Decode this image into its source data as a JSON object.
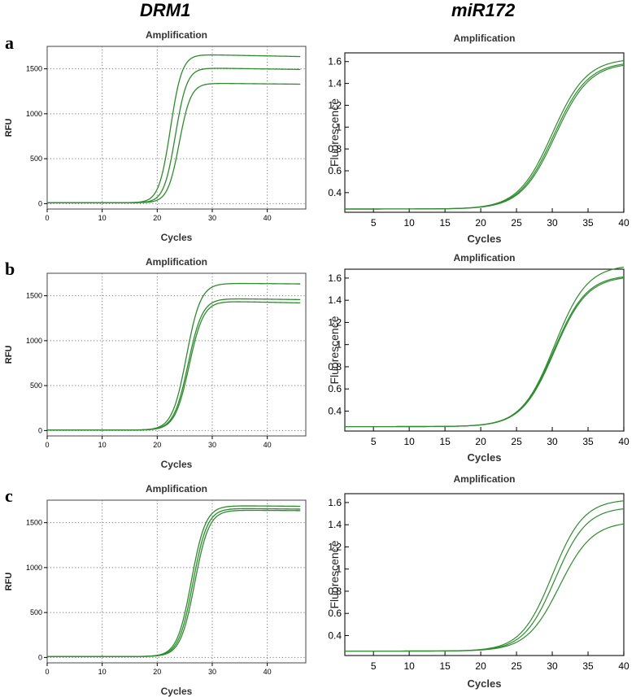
{
  "column_titles": [
    "DRM1",
    "miR172"
  ],
  "row_labels": [
    "a",
    "b",
    "c"
  ],
  "colors": {
    "curve": "#2e8b2e",
    "grid": "#7a7a7a",
    "axis": "#000000"
  },
  "chart_data": [
    {
      "id": "a-left",
      "type": "line",
      "title": "Amplification",
      "xlabel": "Cycles",
      "ylabel": "RFU",
      "xlim": [
        0,
        47
      ],
      "ylim": [
        -60,
        1750
      ],
      "xticks": [
        0,
        10,
        20,
        30,
        40
      ],
      "xtick_labels": [
        "0",
        "10",
        "20",
        "30",
        "40"
      ],
      "yticks": [
        0,
        500,
        1000,
        1500
      ],
      "ytick_labels": [
        "0",
        "500",
        "1000",
        "1500"
      ],
      "grid": true,
      "curve_params": [
        {
          "base": 10,
          "plateau": 1660,
          "mid": 22.4,
          "slope": 1.05,
          "drift": -1.2
        },
        {
          "base": 10,
          "plateau": 1510,
          "mid": 23.3,
          "slope": 1.05,
          "drift": -0.9
        },
        {
          "base": 10,
          "plateau": 1340,
          "mid": 24.0,
          "slope": 1.05,
          "drift": -0.6
        }
      ]
    },
    {
      "id": "a-right",
      "type": "line",
      "title": "Amplification",
      "xlabel": "Cycles",
      "ylabel": "Fluorescence",
      "xlim": [
        1,
        40
      ],
      "ylim": [
        0.22,
        1.68
      ],
      "xticks": [
        5,
        10,
        15,
        20,
        25,
        30,
        35,
        40
      ],
      "xtick_labels": [
        "5",
        "10",
        "15",
        "20",
        "25",
        "30",
        "35",
        "40"
      ],
      "yticks": [
        0.4,
        0.6,
        0.8,
        1.0,
        1.2,
        1.4,
        1.6
      ],
      "ytick_labels": [
        "0.4",
        "0.6",
        "0.8",
        "1",
        "1.2",
        "1.4",
        "1.6"
      ],
      "grid": false,
      "curve_params": [
        {
          "base": 0.25,
          "plateau": 1.63,
          "mid": 30.0,
          "slope": 2.4,
          "drift": 0
        },
        {
          "base": 0.25,
          "plateau": 1.6,
          "mid": 30.2,
          "slope": 2.4,
          "drift": 0
        },
        {
          "base": 0.25,
          "plateau": 1.59,
          "mid": 30.4,
          "slope": 2.4,
          "drift": 0
        }
      ]
    },
    {
      "id": "b-left",
      "type": "line",
      "title": "Amplification",
      "xlabel": "Cycles",
      "ylabel": "RFU",
      "xlim": [
        0,
        47
      ],
      "ylim": [
        -60,
        1750
      ],
      "xticks": [
        0,
        10,
        20,
        30,
        40
      ],
      "xtick_labels": [
        "0",
        "10",
        "20",
        "30",
        "40"
      ],
      "yticks": [
        0,
        500,
        1000,
        1500
      ],
      "ytick_labels": [
        "0",
        "500",
        "1000",
        "1500"
      ],
      "grid": true,
      "curve_params": [
        {
          "base": 5,
          "plateau": 1640,
          "mid": 25.3,
          "slope": 1.3,
          "drift": -0.5
        },
        {
          "base": 5,
          "plateau": 1470,
          "mid": 25.6,
          "slope": 1.3,
          "drift": -0.8
        },
        {
          "base": 5,
          "plateau": 1440,
          "mid": 25.8,
          "slope": 1.3,
          "drift": -1.2
        }
      ]
    },
    {
      "id": "b-right",
      "type": "line",
      "title": "Amplification",
      "xlabel": "Cycles",
      "ylabel": "Fluorescence",
      "xlim": [
        1,
        40
      ],
      "ylim": [
        0.22,
        1.68
      ],
      "xticks": [
        5,
        10,
        15,
        20,
        25,
        30,
        35,
        40
      ],
      "xtick_labels": [
        "5",
        "10",
        "15",
        "20",
        "25",
        "30",
        "35",
        "40"
      ],
      "yticks": [
        0.4,
        0.6,
        0.8,
        1.0,
        1.2,
        1.4,
        1.6
      ],
      "ytick_labels": [
        "0.4",
        "0.6",
        "0.8",
        "1",
        "1.2",
        "1.4",
        "1.6"
      ],
      "grid": false,
      "curve_params": [
        {
          "base": 0.26,
          "plateau": 1.72,
          "mid": 30.3,
          "slope": 2.3,
          "drift": 0
        },
        {
          "base": 0.26,
          "plateau": 1.63,
          "mid": 30.2,
          "slope": 2.3,
          "drift": 0
        },
        {
          "base": 0.26,
          "plateau": 1.62,
          "mid": 30.3,
          "slope": 2.3,
          "drift": 0
        }
      ]
    },
    {
      "id": "c-left",
      "type": "line",
      "title": "Amplification",
      "xlabel": "Cycles",
      "ylabel": "RFU",
      "xlim": [
        0,
        47
      ],
      "ylim": [
        -60,
        1750
      ],
      "xticks": [
        0,
        10,
        20,
        30,
        40
      ],
      "xtick_labels": [
        "0",
        "10",
        "20",
        "30",
        "40"
      ],
      "yticks": [
        0,
        500,
        1000,
        1500
      ],
      "ytick_labels": [
        "0",
        "500",
        "1000",
        "1500"
      ],
      "grid": true,
      "curve_params": [
        {
          "base": 10,
          "plateau": 1690,
          "mid": 26.2,
          "slope": 1.3,
          "drift": -0.5
        },
        {
          "base": 10,
          "plateau": 1660,
          "mid": 26.5,
          "slope": 1.3,
          "drift": -0.6
        },
        {
          "base": 10,
          "plateau": 1640,
          "mid": 26.8,
          "slope": 1.3,
          "drift": -0.4
        }
      ]
    },
    {
      "id": "c-right",
      "type": "line",
      "title": "Amplification",
      "xlabel": "Cycles",
      "ylabel": "Fluorescence",
      "xlim": [
        1,
        40
      ],
      "ylim": [
        0.22,
        1.68
      ],
      "xticks": [
        5,
        10,
        15,
        20,
        25,
        30,
        35,
        40
      ],
      "xtick_labels": [
        "5",
        "10",
        "15",
        "20",
        "25",
        "30",
        "35",
        "40"
      ],
      "yticks": [
        0.4,
        0.6,
        0.8,
        1.0,
        1.2,
        1.4,
        1.6
      ],
      "ytick_labels": [
        "0.4",
        "0.6",
        "0.8",
        "1",
        "1.2",
        "1.4",
        "1.6"
      ],
      "grid": false,
      "curve_params": [
        {
          "base": 0.26,
          "plateau": 1.63,
          "mid": 30.0,
          "slope": 2.2,
          "drift": 0
        },
        {
          "base": 0.26,
          "plateau": 1.56,
          "mid": 30.4,
          "slope": 2.2,
          "drift": 0
        },
        {
          "base": 0.26,
          "plateau": 1.43,
          "mid": 31.0,
          "slope": 2.3,
          "drift": 0
        }
      ]
    }
  ]
}
